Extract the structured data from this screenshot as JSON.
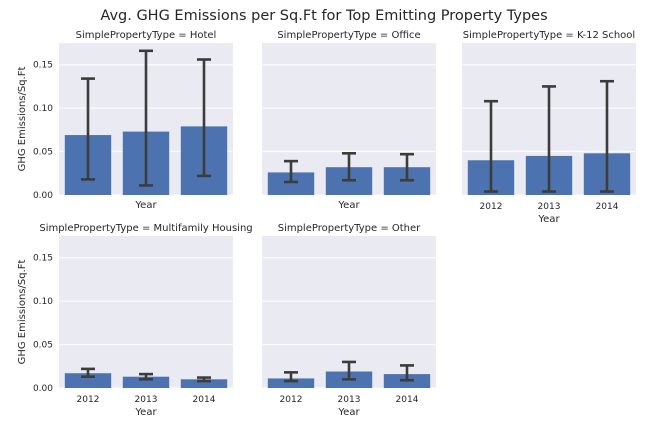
{
  "figure": {
    "title": "Avg. GHG Emissions per Sq.Ft for Top Emitting Property Types",
    "ylabel": "GHG Emissions/Sq.Ft",
    "xlabel": "Year",
    "colors": {
      "bar": "#4c72b0",
      "panel_bg": "#eaeaf2",
      "grid": "#ffffff",
      "errorbar": "#3c3c3c"
    }
  },
  "chart_data": [
    {
      "type": "bar",
      "title": "SimplePropertyType = Hotel",
      "categories": [
        "2012",
        "2013",
        "2014"
      ],
      "values": [
        0.069,
        0.073,
        0.079
      ],
      "ci_low": [
        0.018,
        0.011,
        0.022
      ],
      "ci_high": [
        0.134,
        0.166,
        0.156
      ],
      "ylim": [
        0,
        0.175
      ],
      "yticks": [
        "0.00",
        "0.05",
        "0.10",
        "0.15"
      ],
      "xlabel": "Year",
      "ylabel": "GHG Emissions/Sq.Ft",
      "show_xticklabels": false
    },
    {
      "type": "bar",
      "title": "SimplePropertyType = Office",
      "categories": [
        "2012",
        "2013",
        "2014"
      ],
      "values": [
        0.026,
        0.032,
        0.032
      ],
      "ci_low": [
        0.015,
        0.017,
        0.017
      ],
      "ci_high": [
        0.039,
        0.048,
        0.047
      ],
      "ylim": [
        0,
        0.175
      ],
      "xlabel": "Year",
      "show_xticklabels": false
    },
    {
      "type": "bar",
      "title": "SimplePropertyType = K-12 School",
      "categories": [
        "2012",
        "2013",
        "2014"
      ],
      "values": [
        0.04,
        0.045,
        0.048
      ],
      "ci_low": [
        0.004,
        0.004,
        0.004
      ],
      "ci_high": [
        0.108,
        0.125,
        0.131
      ],
      "ylim": [
        0,
        0.175
      ],
      "xlabel": "Year",
      "show_xticklabels": true
    },
    {
      "type": "bar",
      "title": "SimplePropertyType = Multifamily Housing",
      "categories": [
        "2012",
        "2013",
        "2014"
      ],
      "values": [
        0.017,
        0.013,
        0.01
      ],
      "ci_low": [
        0.013,
        0.01,
        0.008
      ],
      "ci_high": [
        0.022,
        0.016,
        0.012
      ],
      "ylim": [
        0,
        0.175
      ],
      "yticks": [
        "0.00",
        "0.05",
        "0.10",
        "0.15"
      ],
      "xlabel": "Year",
      "ylabel": "GHG Emissions/Sq.Ft",
      "show_xticklabels": true
    },
    {
      "type": "bar",
      "title": "SimplePropertyType = Other",
      "categories": [
        "2012",
        "2013",
        "2014"
      ],
      "values": [
        0.011,
        0.019,
        0.016
      ],
      "ci_low": [
        0.008,
        0.01,
        0.009
      ],
      "ci_high": [
        0.018,
        0.03,
        0.026
      ],
      "ylim": [
        0,
        0.175
      ],
      "xlabel": "Year",
      "show_xticklabels": true
    }
  ]
}
